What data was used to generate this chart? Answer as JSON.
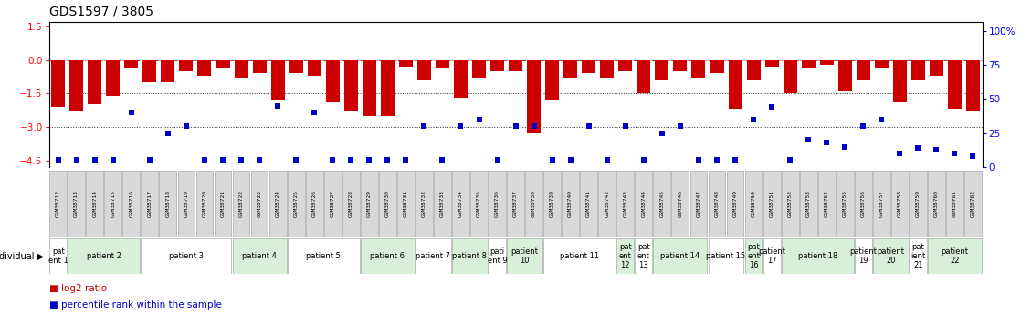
{
  "title": "GDS1597 / 3805",
  "samples": [
    "GSM38712",
    "GSM38713",
    "GSM38714",
    "GSM38715",
    "GSM38716",
    "GSM38717",
    "GSM38718",
    "GSM38719",
    "GSM38720",
    "GSM38721",
    "GSM38722",
    "GSM38723",
    "GSM38724",
    "GSM38725",
    "GSM38726",
    "GSM38727",
    "GSM38728",
    "GSM38729",
    "GSM38730",
    "GSM38731",
    "GSM38732",
    "GSM38733",
    "GSM38734",
    "GSM38735",
    "GSM38736",
    "GSM38737",
    "GSM38738",
    "GSM38739",
    "GSM38740",
    "GSM38741",
    "GSM38742",
    "GSM38743",
    "GSM38744",
    "GSM38745",
    "GSM38746",
    "GSM38747",
    "GSM38748",
    "GSM38749",
    "GSM38750",
    "GSM38751",
    "GSM38752",
    "GSM38753",
    "GSM38754",
    "GSM38755",
    "GSM38756",
    "GSM38757",
    "GSM38758",
    "GSM38759",
    "GSM38760",
    "GSM38761",
    "GSM38762"
  ],
  "log2_ratio": [
    -2.1,
    -2.3,
    -2.0,
    -1.6,
    -0.4,
    -1.0,
    -1.0,
    -0.5,
    -0.7,
    -0.4,
    -0.8,
    -0.6,
    -1.8,
    -0.6,
    -0.7,
    -1.9,
    -2.3,
    -2.5,
    -2.5,
    -0.3,
    -0.9,
    -0.4,
    -1.7,
    -0.8,
    -0.5,
    -0.5,
    -3.3,
    -1.8,
    -0.8,
    -0.6,
    -0.8,
    -0.5,
    -1.5,
    -0.9,
    -0.5,
    -0.8,
    -0.6,
    -2.2,
    -0.9,
    -0.3,
    -1.5,
    -0.4,
    -0.2,
    -1.4,
    -0.9,
    -0.4,
    -1.9,
    -0.9,
    -0.7,
    -2.2,
    -2.3
  ],
  "percentile_rank": [
    5,
    5,
    5,
    5,
    40,
    5,
    25,
    30,
    5,
    5,
    5,
    5,
    45,
    5,
    40,
    5,
    5,
    5,
    5,
    5,
    30,
    5,
    30,
    35,
    5,
    30,
    30,
    5,
    5,
    30,
    5,
    30,
    5,
    25,
    30,
    5,
    5,
    5,
    35,
    44,
    5,
    20,
    18,
    15,
    30,
    35,
    10,
    14,
    13,
    10,
    8
  ],
  "patients": [
    {
      "label": "pat\nent 1",
      "start": 0,
      "end": 1,
      "color": "#ffffff"
    },
    {
      "label": "patient 2",
      "start": 1,
      "end": 5,
      "color": "#d8f0d8"
    },
    {
      "label": "patient 3",
      "start": 5,
      "end": 10,
      "color": "#ffffff"
    },
    {
      "label": "patient 4",
      "start": 10,
      "end": 13,
      "color": "#d8f0d8"
    },
    {
      "label": "patient 5",
      "start": 13,
      "end": 17,
      "color": "#ffffff"
    },
    {
      "label": "patient 6",
      "start": 17,
      "end": 20,
      "color": "#d8f0d8"
    },
    {
      "label": "patient 7",
      "start": 20,
      "end": 22,
      "color": "#ffffff"
    },
    {
      "label": "patient 8",
      "start": 22,
      "end": 24,
      "color": "#d8f0d8"
    },
    {
      "label": "pati\nent 9",
      "start": 24,
      "end": 25,
      "color": "#ffffff"
    },
    {
      "label": "patient\n10",
      "start": 25,
      "end": 27,
      "color": "#d8f0d8"
    },
    {
      "label": "patient 11",
      "start": 27,
      "end": 31,
      "color": "#ffffff"
    },
    {
      "label": "pat\nent\n12",
      "start": 31,
      "end": 32,
      "color": "#d8f0d8"
    },
    {
      "label": "pat\nent\n13",
      "start": 32,
      "end": 33,
      "color": "#ffffff"
    },
    {
      "label": "patient 14",
      "start": 33,
      "end": 36,
      "color": "#d8f0d8"
    },
    {
      "label": "patient 15",
      "start": 36,
      "end": 38,
      "color": "#ffffff"
    },
    {
      "label": "pat\nent\n16",
      "start": 38,
      "end": 39,
      "color": "#d8f0d8"
    },
    {
      "label": "patient\n17",
      "start": 39,
      "end": 40,
      "color": "#ffffff"
    },
    {
      "label": "patient 18",
      "start": 40,
      "end": 44,
      "color": "#d8f0d8"
    },
    {
      "label": "patient\n19",
      "start": 44,
      "end": 45,
      "color": "#ffffff"
    },
    {
      "label": "patient\n20",
      "start": 45,
      "end": 47,
      "color": "#d8f0d8"
    },
    {
      "label": "pat\nient\n21",
      "start": 47,
      "end": 48,
      "color": "#ffffff"
    },
    {
      "label": "patient\n22",
      "start": 48,
      "end": 51,
      "color": "#d8f0d8"
    }
  ],
  "ylim_left": [
    -4.8,
    1.7
  ],
  "ylim_right": [
    0,
    106.67
  ],
  "yticks_left": [
    1.5,
    0,
    -1.5,
    -3,
    -4.5
  ],
  "yticks_right": [
    0,
    25,
    50,
    75,
    100
  ],
  "bar_color": "#cc0000",
  "dot_color": "#0000cc",
  "background_color": "#ffffff",
  "title_fontsize": 10,
  "tick_fontsize": 7.5,
  "sample_fontsize": 4.5,
  "patient_fontsize": 6,
  "legend_fontsize": 7.5
}
